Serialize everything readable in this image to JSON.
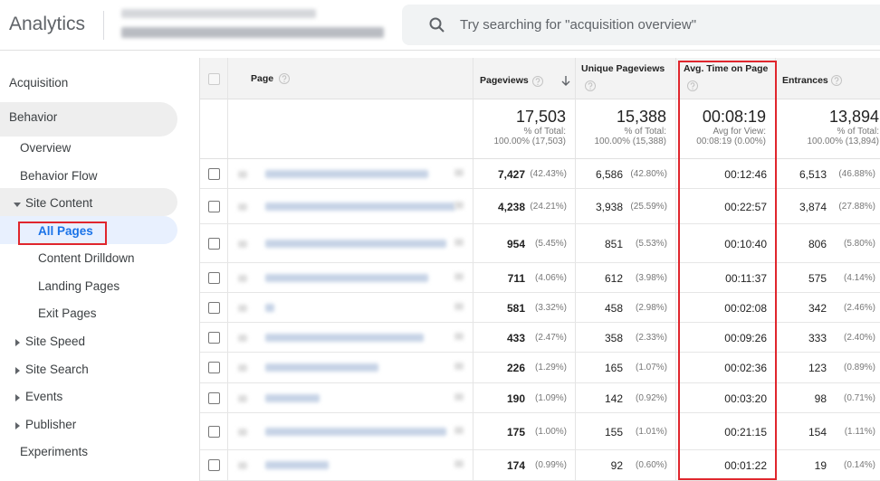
{
  "header": {
    "logo": "Analytics",
    "search_placeholder": "Try searching for \"acquisition overview\""
  },
  "nav": [
    "Acquisition",
    "Behavior",
    "Overview",
    "Behavior Flow",
    "Site Content",
    "All Pages",
    "Content Drilldown",
    "Landing Pages",
    "Exit Pages",
    "Site Speed",
    "Site Search",
    "Events",
    "Publisher",
    "Experiments"
  ],
  "table": {
    "columns": [
      "Page",
      "Pageviews",
      "Unique Pageviews",
      "Avg. Time on Page",
      "Entrances"
    ],
    "totals": [
      {
        "value": "17,503",
        "caption": "% of Total:",
        "detail": "100.00% (17,503)"
      },
      {
        "value": "15,388",
        "caption": "% of Total:",
        "detail": "100.00% (15,388)"
      },
      {
        "value": "00:08:19",
        "caption": "Avg for View:",
        "detail": "00:08:19 (0.00%)"
      },
      {
        "value": "13,894",
        "caption": "% of Total:",
        "detail": "100.00% (13,894)"
      }
    ],
    "rows": [
      [
        "7,427",
        "(42.43%)",
        "6,586",
        "(42.80%)",
        "00:12:46",
        "6,513",
        "(46.88%)"
      ],
      [
        "4,238",
        "(24.21%)",
        "3,938",
        "(25.59%)",
        "00:22:57",
        "3,874",
        "(27.88%)"
      ],
      [
        "954",
        "(5.45%)",
        "851",
        "(5.53%)",
        "00:10:40",
        "806",
        "(5.80%)"
      ],
      [
        "711",
        "(4.06%)",
        "612",
        "(3.98%)",
        "00:11:37",
        "575",
        "(4.14%)"
      ],
      [
        "581",
        "(3.32%)",
        "458",
        "(2.98%)",
        "00:02:08",
        "342",
        "(2.46%)"
      ],
      [
        "433",
        "(2.47%)",
        "358",
        "(2.33%)",
        "00:09:26",
        "333",
        "(2.40%)"
      ],
      [
        "226",
        "(1.29%)",
        "165",
        "(1.07%)",
        "00:02:36",
        "123",
        "(0.89%)"
      ],
      [
        "190",
        "(1.09%)",
        "142",
        "(0.92%)",
        "00:03:20",
        "98",
        "(0.71%)"
      ],
      [
        "175",
        "(1.00%)",
        "155",
        "(1.01%)",
        "00:21:15",
        "154",
        "(1.11%)"
      ],
      [
        "174",
        "(0.99%)",
        "92",
        "(0.60%)",
        "00:01:22",
        "19",
        "(0.14%)"
      ]
    ]
  }
}
